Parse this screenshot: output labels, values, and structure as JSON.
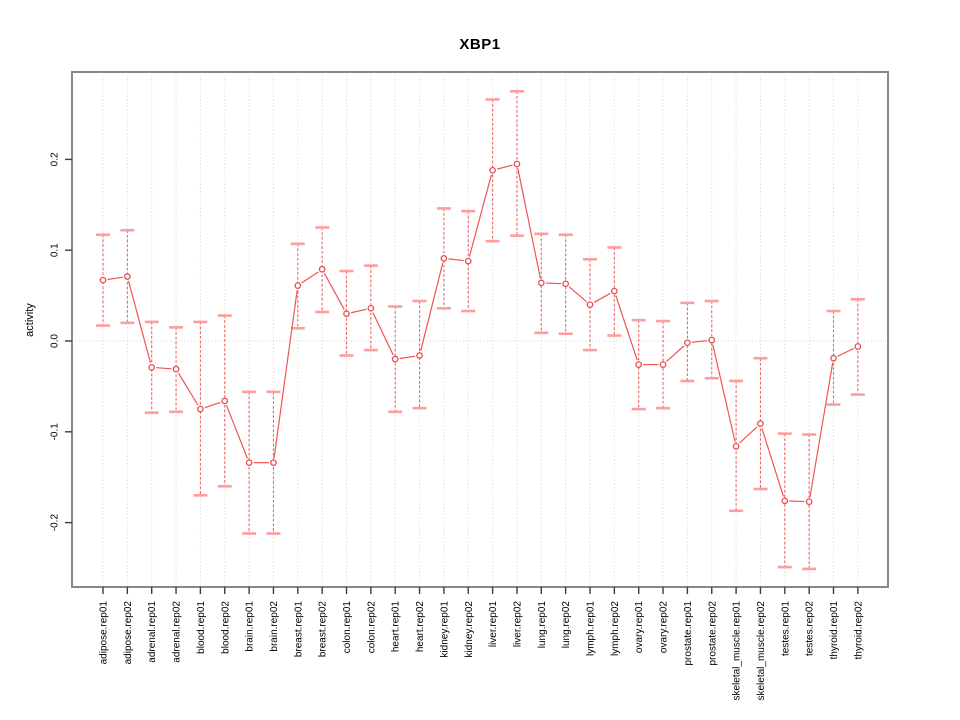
{
  "page": {
    "background": "#ffffff"
  },
  "chart_data": {
    "type": "line",
    "title": "XBP1",
    "xlabel": "",
    "ylabel": "activity",
    "ylim": [
      -0.271,
      0.296
    ],
    "yticks": [
      -0.2,
      -0.1,
      0.0,
      0.1,
      0.2
    ],
    "ytick_labels": [
      "-0.2",
      "-0.1",
      "0.0",
      "0.1",
      "0.2"
    ],
    "grid": "dotted vertical gridline at each category; dotted horizontal line at y=0",
    "legend": "none",
    "point_style": "open-circle with dashed error-bar stems and solid caps",
    "categories": [
      "adipose.rep01",
      "adipose.rep02",
      "adrenal.rep01",
      "adrenal.rep02",
      "blood.rep01",
      "blood.rep02",
      "brain.rep01",
      "brain.rep02",
      "breast.rep01",
      "breast.rep02",
      "colon.rep01",
      "colon.rep02",
      "heart.rep01",
      "heart.rep02",
      "kidney.rep01",
      "kidney.rep02",
      "liver.rep01",
      "liver.rep02",
      "lung.rep01",
      "lung.rep02",
      "lymph.rep01",
      "lymph.rep02",
      "ovary.rep01",
      "ovary.rep02",
      "prostate.rep01",
      "prostate.rep02",
      "skeletal_muscle.rep01",
      "skeletal_muscle.rep02",
      "testes.rep01",
      "testes.rep02",
      "thyroid.rep01",
      "thyroid.rep02"
    ],
    "series": [
      {
        "name": "XBP1 activity",
        "values": [
          0.067,
          0.071,
          -0.029,
          -0.031,
          -0.075,
          -0.066,
          -0.134,
          -0.134,
          0.061,
          0.079,
          0.03,
          0.036,
          -0.02,
          -0.016,
          0.091,
          0.088,
          0.188,
          0.195,
          0.064,
          0.063,
          0.04,
          0.055,
          -0.026,
          -0.026,
          -0.002,
          0.001,
          -0.116,
          -0.091,
          -0.176,
          -0.177,
          -0.019,
          -0.006
        ],
        "ci_lower": [
          0.017,
          0.02,
          -0.079,
          -0.078,
          -0.17,
          -0.16,
          -0.212,
          -0.212,
          0.014,
          0.032,
          -0.016,
          -0.01,
          -0.078,
          -0.074,
          0.036,
          0.033,
          0.11,
          0.116,
          0.009,
          0.008,
          -0.01,
          0.006,
          -0.075,
          -0.074,
          -0.044,
          -0.041,
          -0.187,
          -0.163,
          -0.249,
          -0.251,
          -0.07,
          -0.059
        ],
        "ci_upper": [
          0.117,
          0.122,
          0.021,
          0.015,
          0.021,
          0.028,
          -0.056,
          -0.056,
          0.107,
          0.125,
          0.077,
          0.083,
          0.038,
          0.044,
          0.146,
          0.143,
          0.266,
          0.275,
          0.118,
          0.117,
          0.09,
          0.103,
          0.023,
          0.022,
          0.042,
          0.044,
          -0.044,
          -0.019,
          -0.102,
          -0.103,
          0.033,
          0.046
        ]
      }
    ],
    "colors": {
      "line": "#f15353",
      "point_stroke": "#e84c4c",
      "point_fill": "#ffffff",
      "error_stem": "#f15353",
      "error_cap": "#ff9d9d",
      "grid": "#d2d2d2",
      "box": "#888888",
      "tick": "#3c3c3c",
      "text": "#000000"
    }
  }
}
